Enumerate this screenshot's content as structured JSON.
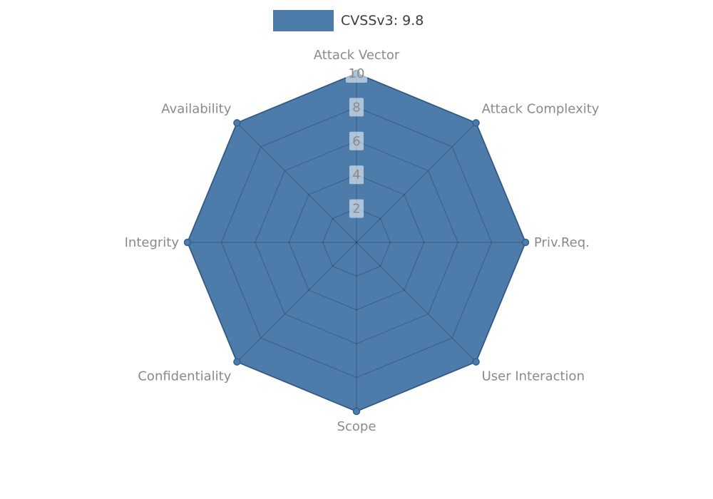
{
  "chart_data": {
    "type": "radar",
    "title": "",
    "categories": [
      "Attack Vector",
      "Attack Complexity",
      "Priv.Req.",
      "User Interaction",
      "Scope",
      "Confidentiality",
      "Integrity",
      "Availability"
    ],
    "series": [
      {
        "name": "CVSSv3: 9.8",
        "values": [
          10,
          10,
          10,
          10,
          10,
          10,
          10,
          10
        ],
        "color": "#4d7cab",
        "edge_color": "#3e6e9e",
        "marker_edge_color": "#33608f"
      }
    ],
    "rlim": [
      0,
      10
    ],
    "ticks": [
      2,
      4,
      6,
      8,
      10
    ],
    "tick_label_color": "#8a8a8a",
    "tick_label_bg": "#ffffff",
    "axis_label_color": "#8a8a8a",
    "grid_color": "#000000",
    "grid_opacity": 0.25,
    "legend_position": "top",
    "background": "#ffffff"
  }
}
